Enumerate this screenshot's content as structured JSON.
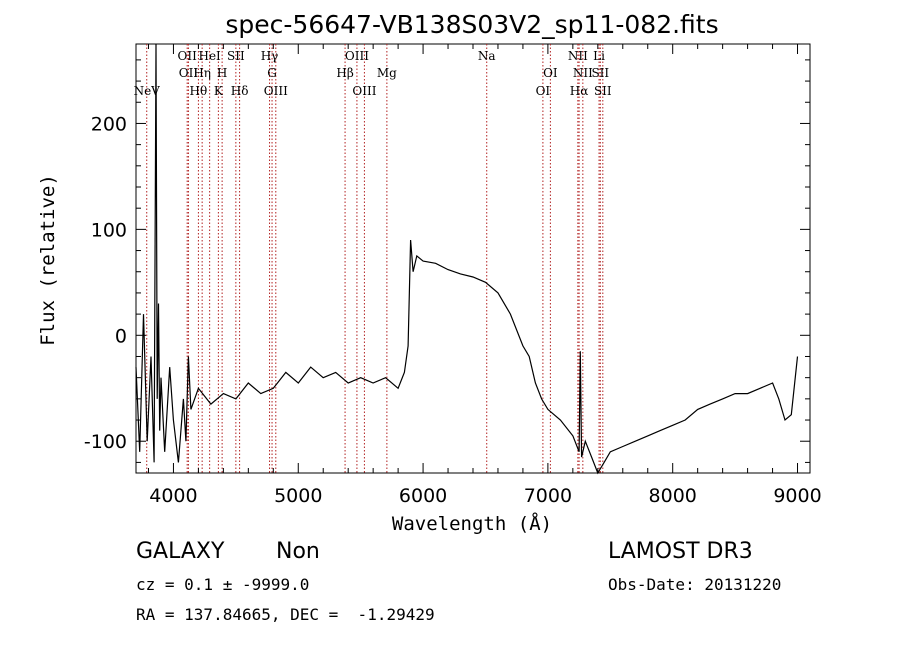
{
  "chart_data": {
    "type": "line",
    "title": "spec-56647-VB138S03V2_sp11-082.fits",
    "xlabel": "Wavelength (Å)",
    "ylabel": "Flux (relative)",
    "xlim": [
      3700,
      9100
    ],
    "ylim": [
      -130,
      275
    ],
    "x_ticks": [
      4000,
      5000,
      6000,
      7000,
      8000,
      9000
    ],
    "y_ticks": [
      -100,
      0,
      100,
      200
    ],
    "line_color": "#000000",
    "marker_color": "#b22222",
    "series": [
      {
        "name": "spectrum",
        "x": [
          3700,
          3730,
          3760,
          3790,
          3820,
          3845,
          3860,
          3870,
          3880,
          3890,
          3900,
          3930,
          3970,
          4000,
          4040,
          4080,
          4100,
          4120,
          4140,
          4200,
          4300,
          4400,
          4500,
          4600,
          4700,
          4800,
          4900,
          5000,
          5100,
          5200,
          5300,
          5400,
          5500,
          5600,
          5700,
          5800,
          5850,
          5880,
          5900,
          5920,
          5950,
          6000,
          6100,
          6200,
          6300,
          6400,
          6500,
          6600,
          6700,
          6800,
          6850,
          6900,
          6950,
          7000,
          7100,
          7200,
          7250,
          7260,
          7270,
          7300,
          7350,
          7400,
          7450,
          7500,
          7600,
          7700,
          7800,
          7900,
          8000,
          8100,
          8200,
          8300,
          8400,
          8500,
          8600,
          8700,
          8800,
          8850,
          8900,
          8950,
          9000
        ],
        "y": [
          -30,
          -110,
          20,
          -100,
          -20,
          -120,
          275,
          -60,
          30,
          -90,
          -40,
          -110,
          -30,
          -80,
          -120,
          -60,
          -100,
          -20,
          -70,
          -50,
          -65,
          -55,
          -60,
          -45,
          -55,
          -50,
          -35,
          -45,
          -30,
          -40,
          -35,
          -45,
          -40,
          -45,
          -40,
          -50,
          -35,
          -10,
          90,
          60,
          75,
          70,
          68,
          62,
          58,
          55,
          50,
          40,
          20,
          -10,
          -20,
          -45,
          -60,
          -70,
          -80,
          -95,
          -110,
          -15,
          -115,
          -100,
          -115,
          -130,
          -120,
          -110,
          -105,
          -100,
          -95,
          -90,
          -85,
          -80,
          -70,
          -65,
          -60,
          -55,
          -55,
          -50,
          -45,
          -60,
          -80,
          -75,
          -20
        ]
      }
    ],
    "spectral_lines": [
      {
        "label": "NeV",
        "wavelength": 3786,
        "row": 3
      },
      {
        "label": "OII",
        "wavelength": 4110,
        "row": 1
      },
      {
        "label": "OII",
        "wavelength": 4120,
        "row": 2
      },
      {
        "label": "Hθ",
        "wavelength": 4200,
        "row": 3
      },
      {
        "label": "Hη",
        "wavelength": 4230,
        "row": 2
      },
      {
        "label": "HeI",
        "wavelength": 4290,
        "row": 1
      },
      {
        "label": "K",
        "wavelength": 4360,
        "row": 3
      },
      {
        "label": "H",
        "wavelength": 4390,
        "row": 2
      },
      {
        "label": "SII",
        "wavelength": 4500,
        "row": 1
      },
      {
        "label": "Hδ",
        "wavelength": 4530,
        "row": 3
      },
      {
        "label": "Hγ",
        "wavelength": 4770,
        "row": 1
      },
      {
        "label": "G",
        "wavelength": 4790,
        "row": 2
      },
      {
        "label": "OIII",
        "wavelength": 4820,
        "row": 3
      },
      {
        "label": "Hβ",
        "wavelength": 5375,
        "row": 2
      },
      {
        "label": "OIII",
        "wavelength": 5470,
        "row": 1
      },
      {
        "label": "OIII",
        "wavelength": 5530,
        "row": 3
      },
      {
        "label": "Mg",
        "wavelength": 5710,
        "row": 2
      },
      {
        "label": "Na",
        "wavelength": 6510,
        "row": 1
      },
      {
        "label": "OI",
        "wavelength": 6960,
        "row": 3
      },
      {
        "label": "OI",
        "wavelength": 7020,
        "row": 2
      },
      {
        "label": "NII",
        "wavelength": 7240,
        "row": 1
      },
      {
        "label": "Hα",
        "wavelength": 7250,
        "row": 3
      },
      {
        "label": "NII",
        "wavelength": 7280,
        "row": 2
      },
      {
        "label": "SII",
        "wavelength": 7420,
        "row": 2
      },
      {
        "label": "Li",
        "wavelength": 7410,
        "row": 1
      },
      {
        "label": "SII",
        "wavelength": 7440,
        "row": 3
      }
    ]
  },
  "info": {
    "object_class": "GALAXY",
    "subclass": "Non",
    "survey": "LAMOST DR3",
    "redshift_line": "cz = 0.1 ± -9999.0",
    "obs_date_line": "Obs-Date: 20131220",
    "coords_line": "RA = 137.84665, DEC =  -1.29429"
  }
}
